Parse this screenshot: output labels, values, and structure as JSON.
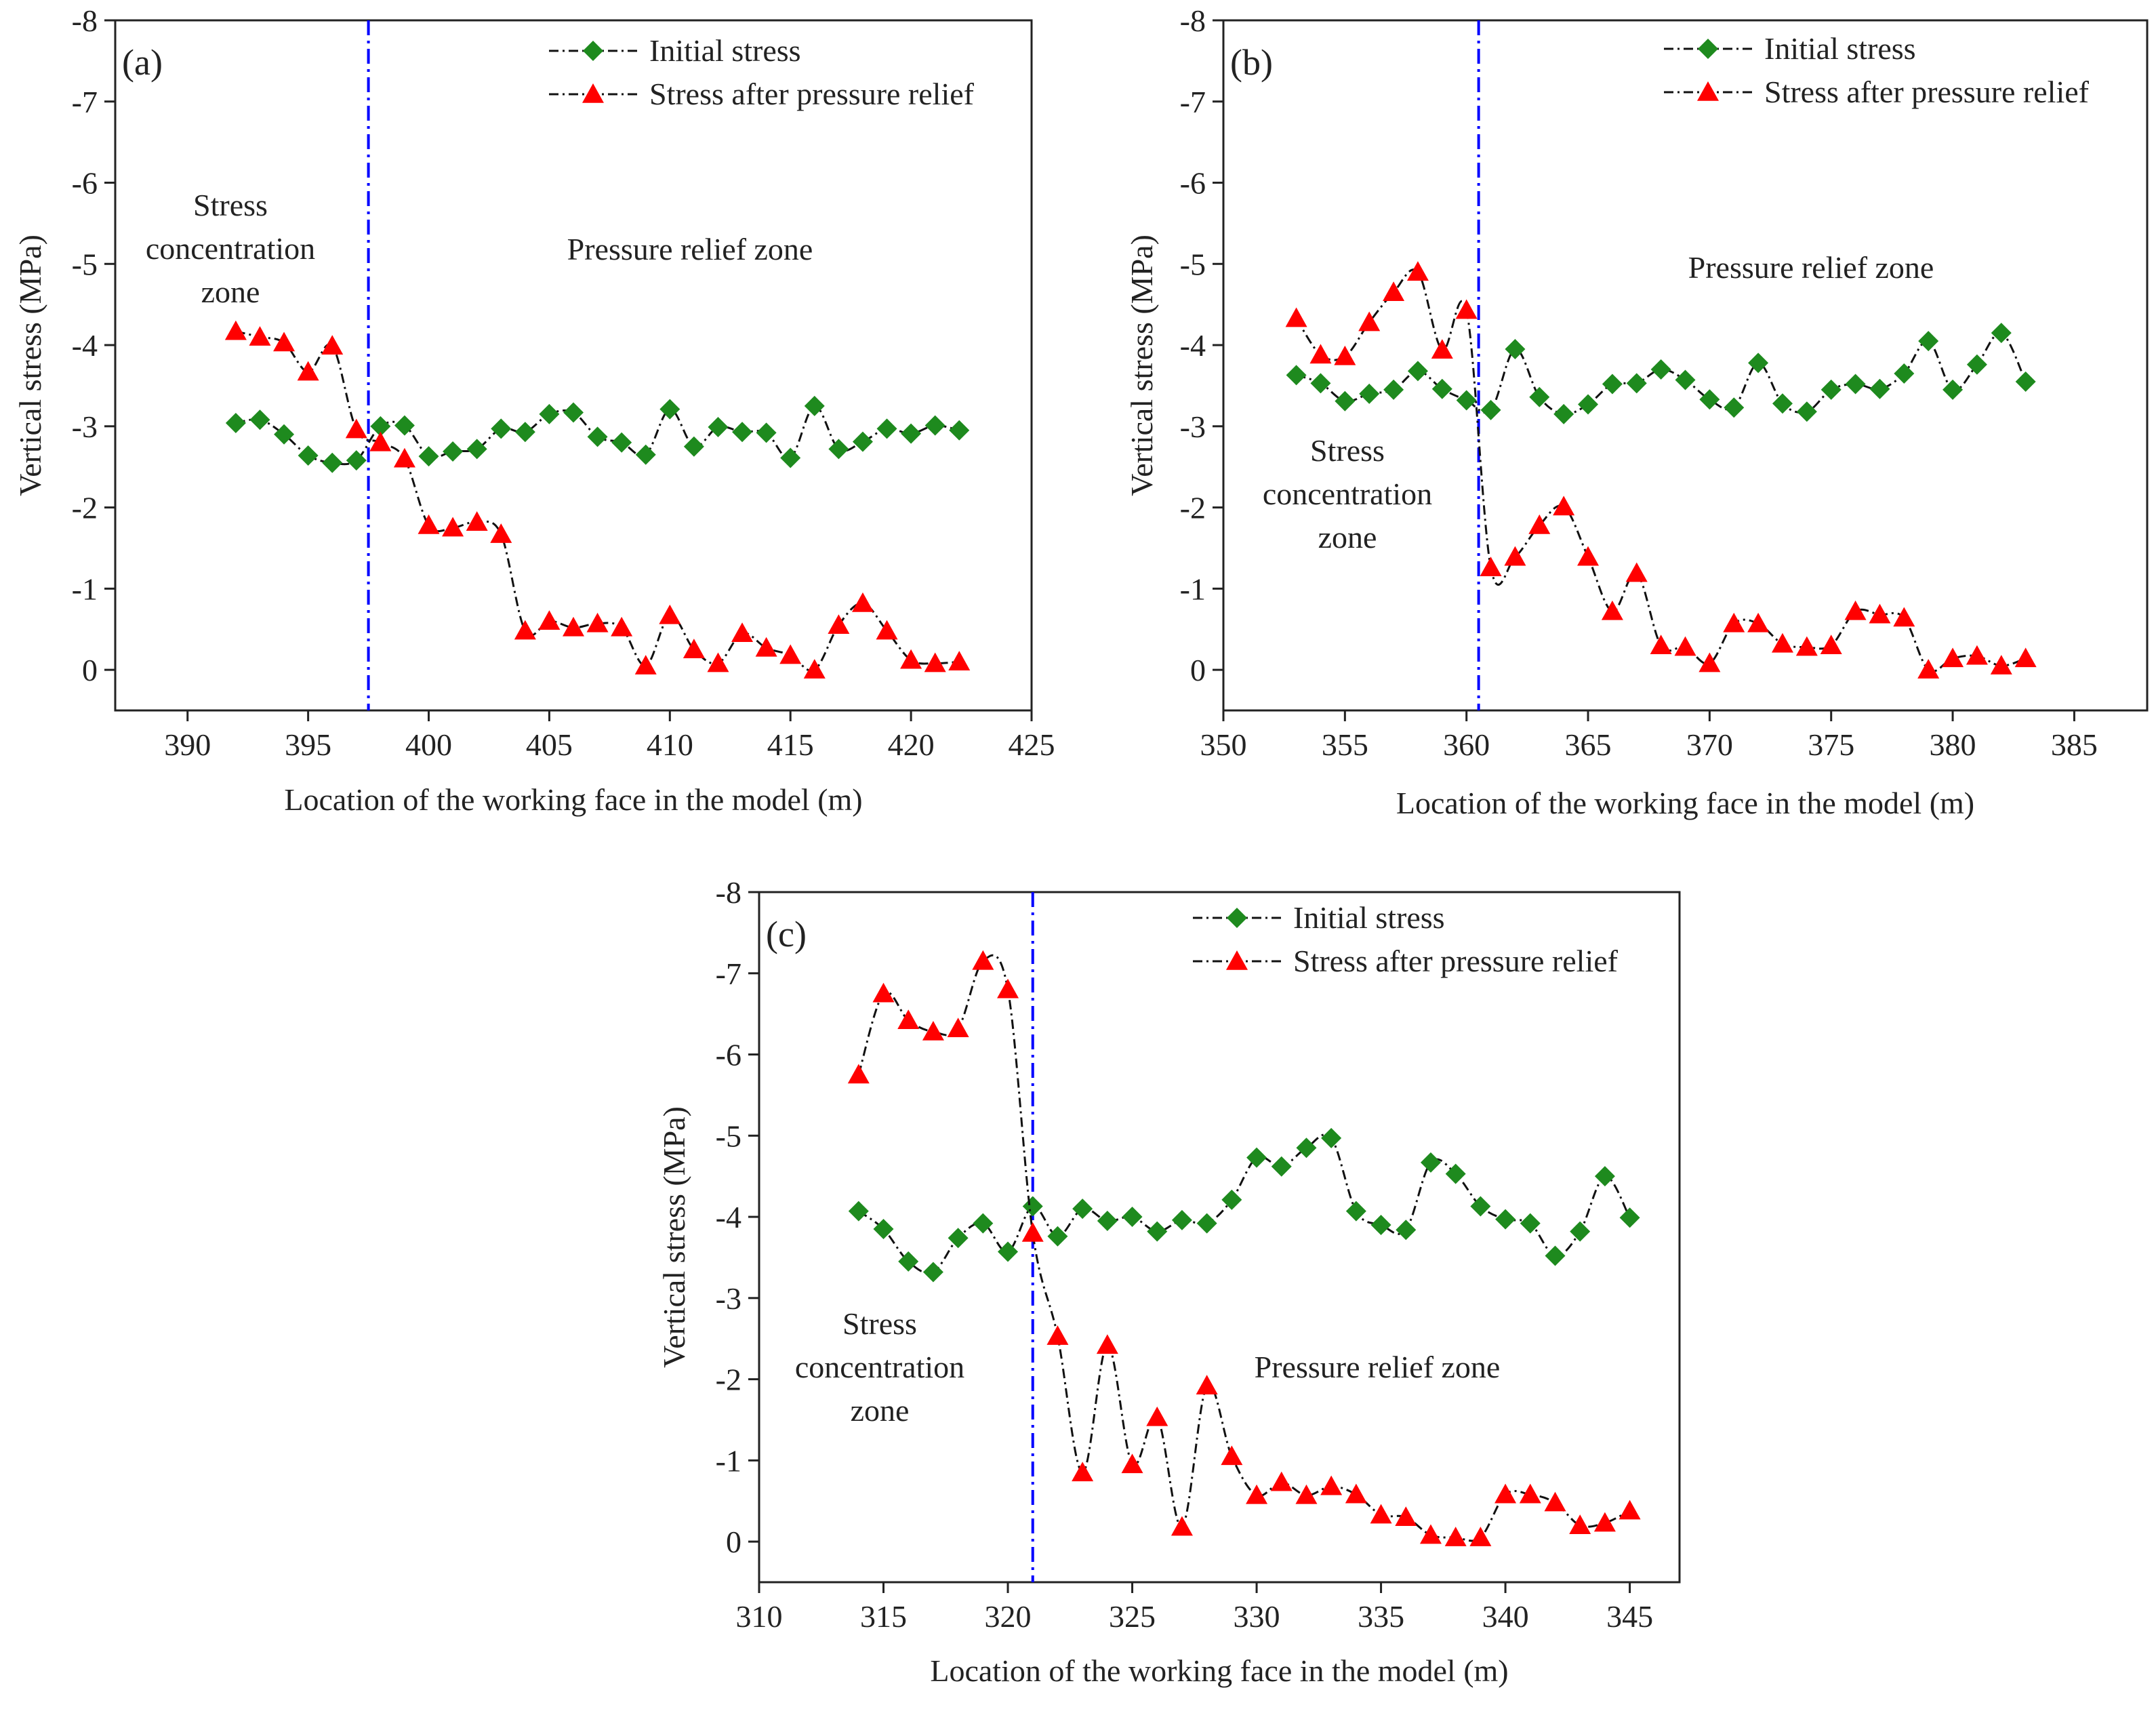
{
  "colors": {
    "initial": "#1e8a1e",
    "relief": "#ff0000",
    "divider": "#0000ff",
    "line": "#111111"
  },
  "legend": {
    "initial": "Initial stress",
    "relief": "Stress after pressure relief"
  },
  "chart_data": [
    {
      "type": "line",
      "panel_label": "(a)",
      "xlabel": "Location of the working face in the model (m)",
      "ylabel": "Vertical stress (MPa)",
      "xlim": [
        387,
        425
      ],
      "ylim": [
        0.5,
        -8
      ],
      "x_ticks": [
        390,
        395,
        400,
        405,
        410,
        415,
        420,
        425
      ],
      "y_ticks": [
        0,
        -1,
        -2,
        -3,
        -4,
        -5,
        -6,
        -7,
        -8
      ],
      "divider_x": 397.5,
      "zones": {
        "concentration": [
          "Stress",
          "concentration",
          "zone"
        ],
        "relief": [
          "Pressure relief zone"
        ]
      },
      "legend_position": "top-right",
      "series": [
        {
          "name": "Initial stress",
          "marker": "diamond",
          "x": [
            392,
            393,
            394,
            395,
            396,
            397,
            398,
            399,
            400,
            401,
            402,
            403,
            404,
            405,
            406,
            407,
            408,
            409,
            410,
            411,
            412,
            413,
            414,
            415,
            416,
            417,
            418,
            419,
            420,
            421,
            422
          ],
          "y": [
            -3.04,
            -3.08,
            -2.9,
            -2.64,
            -2.55,
            -2.58,
            -3.0,
            -3.01,
            -2.63,
            -2.69,
            -2.72,
            -2.97,
            -2.93,
            -3.15,
            -3.17,
            -2.87,
            -2.8,
            -2.65,
            -3.21,
            -2.75,
            -2.99,
            -2.93,
            -2.92,
            -2.61,
            -3.25,
            -2.72,
            -2.81,
            -2.97,
            -2.91,
            -3.01,
            -2.95
          ]
        },
        {
          "name": "Stress after pressure relief",
          "marker": "triangle",
          "x": [
            392,
            393,
            394,
            395,
            396,
            397,
            398,
            399,
            400,
            401,
            402,
            403,
            404,
            405,
            406,
            407,
            408,
            409,
            410,
            411,
            412,
            413,
            414,
            415,
            416,
            417,
            418,
            419,
            420,
            421,
            422
          ],
          "y": [
            -4.17,
            -4.1,
            -4.03,
            -3.67,
            -3.99,
            -2.96,
            -2.8,
            -2.6,
            -1.78,
            -1.75,
            -1.82,
            -1.67,
            -0.48,
            -0.6,
            -0.52,
            -0.57,
            -0.52,
            -0.05,
            -0.67,
            -0.25,
            -0.08,
            -0.45,
            -0.27,
            -0.18,
            0.0,
            -0.55,
            -0.82,
            -0.48,
            -0.12,
            -0.08,
            -0.1
          ]
        }
      ]
    },
    {
      "type": "line",
      "panel_label": "(b)",
      "xlabel": "Location of the working face in the model (m)",
      "ylabel": "Vertical stress (MPa)",
      "xlim": [
        350,
        388
      ],
      "ylim": [
        0.5,
        -8
      ],
      "x_ticks": [
        350,
        355,
        360,
        365,
        370,
        375,
        380,
        385
      ],
      "y_ticks": [
        0,
        -1,
        -2,
        -3,
        -4,
        -5,
        -6,
        -7,
        -8
      ],
      "divider_x": 360.5,
      "zones": {
        "concentration": [
          "Stress",
          "concentration",
          "zone"
        ],
        "relief": [
          "Pressure relief zone"
        ]
      },
      "legend_position": "top-right",
      "series": [
        {
          "name": "Initial stress",
          "marker": "diamond",
          "x": [
            353,
            354,
            355,
            356,
            357,
            358,
            359,
            360,
            361,
            362,
            363,
            364,
            365,
            366,
            367,
            368,
            369,
            370,
            371,
            372,
            373,
            374,
            375,
            376,
            377,
            378,
            379,
            380,
            381,
            382,
            383
          ],
          "y": [
            -3.63,
            -3.53,
            -3.31,
            -3.4,
            -3.45,
            -3.68,
            -3.46,
            -3.32,
            -3.2,
            -3.95,
            -3.36,
            -3.15,
            -3.27,
            -3.52,
            -3.53,
            -3.7,
            -3.57,
            -3.33,
            -3.23,
            -3.78,
            -3.28,
            -3.18,
            -3.45,
            -3.52,
            -3.46,
            -3.65,
            -4.05,
            -3.45,
            -3.76,
            -4.15,
            -3.55
          ]
        },
        {
          "name": "Stress after pressure relief",
          "marker": "triangle",
          "x": [
            353,
            354,
            355,
            356,
            357,
            358,
            359,
            360,
            361,
            362,
            363,
            364,
            365,
            366,
            367,
            368,
            369,
            370,
            371,
            372,
            373,
            374,
            375,
            376,
            377,
            378,
            379,
            380,
            381,
            382,
            383
          ],
          "y": [
            -4.33,
            -3.88,
            -3.86,
            -4.28,
            -4.65,
            -4.9,
            -3.94,
            -4.43,
            -1.26,
            -1.39,
            -1.78,
            -2.01,
            -1.39,
            -0.72,
            -1.19,
            -0.3,
            -0.28,
            -0.08,
            -0.57,
            -0.57,
            -0.32,
            -0.28,
            -0.3,
            -0.72,
            -0.68,
            -0.64,
            0.0,
            -0.14,
            -0.17,
            -0.05,
            -0.14
          ]
        }
      ]
    },
    {
      "type": "line",
      "panel_label": "(c)",
      "xlabel": "Location of the working face in the model (m)",
      "ylabel": "Vertical stress (MPa)",
      "xlim": [
        310,
        347
      ],
      "ylim": [
        0.5,
        -8
      ],
      "x_ticks": [
        310,
        315,
        320,
        325,
        330,
        335,
        340,
        345
      ],
      "y_ticks": [
        0,
        -1,
        -2,
        -3,
        -4,
        -5,
        -6,
        -7,
        -8
      ],
      "divider_x": 321,
      "zones": {
        "concentration": [
          "Stress",
          "concentration",
          "zone"
        ],
        "relief": [
          "Pressure relief zone"
        ]
      },
      "legend_position": "top-right",
      "series": [
        {
          "name": "Initial stress",
          "marker": "diamond",
          "x": [
            314,
            315,
            316,
            317,
            318,
            319,
            320,
            321,
            322,
            323,
            324,
            325,
            326,
            327,
            328,
            329,
            330,
            331,
            332,
            333,
            334,
            335,
            336,
            337,
            338,
            339,
            340,
            341,
            342,
            343,
            344,
            345
          ],
          "y": [
            -4.07,
            -3.85,
            -3.45,
            -3.32,
            -3.74,
            -3.92,
            -3.57,
            -4.13,
            -3.76,
            -4.1,
            -3.95,
            -4.0,
            -3.82,
            -3.96,
            -3.92,
            -4.21,
            -4.73,
            -4.62,
            -4.85,
            -4.97,
            -4.07,
            -3.9,
            -3.84,
            -4.67,
            -4.53,
            -4.13,
            -3.97,
            -3.92,
            -3.52,
            -3.82,
            -4.5,
            -3.99
          ]
        },
        {
          "name": "Stress after pressure relief",
          "marker": "triangle",
          "x": [
            314,
            315,
            316,
            317,
            318,
            319,
            320,
            321,
            322,
            323,
            324,
            325,
            326,
            327,
            328,
            329,
            330,
            331,
            332,
            333,
            334,
            335,
            336,
            337,
            338,
            339,
            340,
            341,
            342,
            343,
            344,
            345
          ],
          "y": [
            -5.75,
            -6.75,
            -6.42,
            -6.28,
            -6.32,
            -7.15,
            -6.8,
            -3.8,
            -2.53,
            -0.85,
            -2.42,
            -0.95,
            -1.53,
            -0.18,
            -1.92,
            -1.05,
            -0.57,
            -0.73,
            -0.57,
            -0.68,
            -0.58,
            -0.33,
            -0.3,
            -0.08,
            -0.05,
            -0.05,
            -0.58,
            -0.58,
            -0.48,
            -0.2,
            -0.23,
            -0.38
          ]
        }
      ]
    }
  ]
}
